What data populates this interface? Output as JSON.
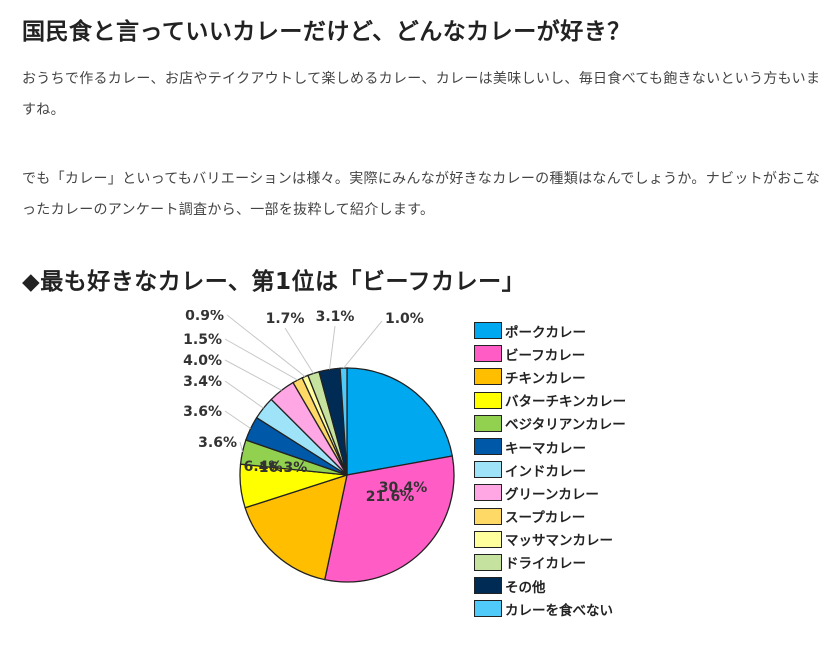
{
  "article": {
    "title": "国民食と言っていいカレーだけど、どんなカレーが好き？",
    "paragraph1": "おうちで作るカレー、お店やテイクアウトして楽しめるカレー、カレーは美味しいし、毎日食べても飽きないという方もいますね。",
    "paragraph2": "でも「カレー」といってもバリエーションは様々。実際にみんなが好きなカレーの種類はなんでしょうか。ナビットがおこなったカレーのアンケート調査から、一部を抜粋して紹介します。",
    "section_heading": "◆最も好きなカレー、第1位は「ビーフカレー」"
  },
  "chart_data": {
    "type": "pie",
    "unit": "%",
    "categories": [
      "ポークカレー",
      "ビーフカレー",
      "チキンカレー",
      "バターチキンカレー",
      "ベジタリアンカレー",
      "キーマカレー",
      "インドカレー",
      "グリーンカレー",
      "スープカレー",
      "マッサマンカレー",
      "ドライカレー",
      "その他",
      "カレーを食べない"
    ],
    "values": [
      21.6,
      30.4,
      16.3,
      6.4,
      3.6,
      3.6,
      3.4,
      4.0,
      1.5,
      0.9,
      1.7,
      3.1,
      1.0
    ],
    "labels": [
      "21.6%",
      "30.4%",
      "16.3%",
      "6.4%",
      "3.6%",
      "3.6%",
      "3.4%",
      "4.0%",
      "1.5%",
      "0.9%",
      "1.7%",
      "3.1%",
      "1.0%"
    ],
    "colors": [
      "#00a8f0",
      "#ff5cc6",
      "#ffbe00",
      "#ffff00",
      "#92d050",
      "#0058a8",
      "#9fe3f9",
      "#ffa6e4",
      "#ffd966",
      "#ffff9e",
      "#c5e39e",
      "#002b55",
      "#4fcaf9"
    ],
    "legend_position": "right"
  }
}
